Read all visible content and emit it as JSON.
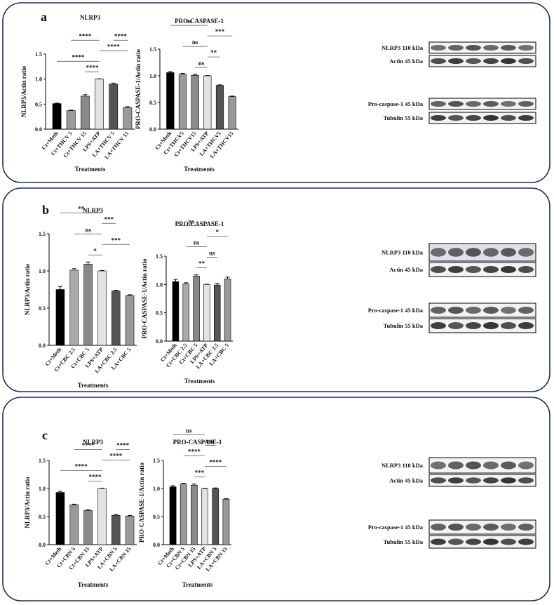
{
  "panels": [
    {
      "label": "a",
      "blots": [
        "NLRP3  110 kDa",
        "Actin 45 kDa",
        "Pro-caspase-1  45 kDa",
        "Tubulin  55 kDa"
      ]
    },
    {
      "label": "b",
      "blots": [
        "NLRP3  110 kDa",
        "Actin 45 kDa",
        "Pro-caspase-1  45 kDa",
        "Tubulin  55 kDa"
      ]
    },
    {
      "label": "c",
      "blots": [
        "NLRP3  110 kDa",
        "Actin 45 kDa",
        "Pro-caspase-1  45 kDa",
        "Tubulin  55 kDa"
      ]
    }
  ],
  "chart_data": [
    {
      "type": "bar",
      "title": "NLRP3",
      "ylabel": "NLRP3/Actin ratio",
      "xlabel": "Treatments",
      "categories": [
        "Ct+Meth",
        "Ct+THCV 5",
        "Ct+THCV 15",
        "LPS+ATP",
        "LA+THCV 5",
        "LA+THCV 15"
      ],
      "values": [
        0.51,
        0.37,
        0.66,
        1.0,
        0.9,
        0.43
      ],
      "errors": [
        0.01,
        0.01,
        0.03,
        0.005,
        0.02,
        0.02
      ],
      "colors": [
        "#000000",
        "#9a9a9a",
        "#8a8a8a",
        "#e2e2e2",
        "#555555",
        "#9a9a9a"
      ],
      "ylim": [
        0,
        1.5
      ],
      "yticks": [
        {
          "value": 0,
          "label": "0.0"
        },
        0.5,
        {
          "value": 1,
          "label": "1.0"
        },
        1.5
      ],
      "annotations": [
        {
          "text": "****",
          "from": "LPS+ATP",
          "to": "Ct+THCV 15"
        },
        {
          "text": "****",
          "from": "Ct+Meth",
          "to": "LPS+ATP"
        },
        {
          "text": "****",
          "from": "LPS+ATP",
          "to": "LA+THCV 15"
        },
        {
          "text": "****",
          "from": "Ct+THCV 5",
          "to": "LPS+ATP"
        },
        {
          "text": "****",
          "from": "LA+THCV 5",
          "to": "LA+THCV 15"
        }
      ]
    },
    {
      "type": "bar",
      "title": "PRO-CASPASE-1",
      "ylabel": "PRO-CASPASE-1/Actin ratio",
      "xlabel": "Treatments",
      "categories": [
        "Ct+Meth",
        "Ct+THCV5",
        "Ct+THCV15",
        "LPS+ATP",
        "LA+THCV5",
        "LA+THCV15"
      ],
      "values": [
        1.06,
        1.03,
        1.01,
        1.0,
        0.82,
        0.61
      ],
      "errors": [
        0.02,
        0.015,
        0.015,
        0.005,
        0.01,
        0.01
      ],
      "colors": [
        "#000000",
        "#9a9a9a",
        "#8a8a8a",
        "#e2e2e2",
        "#555555",
        "#9a9a9a"
      ],
      "ylim": [
        0,
        1.5
      ],
      "yticks": [
        {
          "value": 0,
          "label": "0.0"
        },
        0.5,
        {
          "value": 1,
          "label": "1.0"
        },
        1.5
      ],
      "annotations": [
        {
          "text": "ns",
          "from": "Ct+THCV15",
          "to": "LPS+ATP"
        },
        {
          "text": "**",
          "from": "LPS+ATP",
          "to": "LA+THCV5"
        },
        {
          "text": "ns",
          "from": "Ct+THCV5",
          "to": "LPS+ATP"
        },
        {
          "text": "***",
          "from": "LPS+ATP",
          "to": "LA+THCV15"
        },
        {
          "text": "ns",
          "from": "Ct+Meth",
          "to": "LPS+ATP"
        }
      ]
    },
    {
      "type": "bar",
      "title": "NLRP3",
      "ylabel": "NLRP3/Actin ratio",
      "xlabel": "Treatments",
      "categories": [
        "Ct+Meth",
        "Ct+CBC 2.5",
        "Ct+CBC 5",
        "LPS+ATP",
        "LA+CBC 2.5",
        "LA+CBC 5"
      ],
      "values": [
        0.75,
        1.01,
        1.09,
        1.0,
        0.73,
        0.67
      ],
      "errors": [
        0.04,
        0.02,
        0.03,
        0.005,
        0.01,
        0.01
      ],
      "colors": [
        "#000000",
        "#aaaaaa",
        "#888888",
        "#e2e2e2",
        "#555555",
        "#999999"
      ],
      "ylim": [
        0,
        1.5
      ],
      "yticks": [
        {
          "value": 0,
          "label": "0.0"
        },
        0.5,
        {
          "value": 1,
          "label": "1.0"
        },
        1.5
      ],
      "annotations": [
        {
          "text": "*",
          "from": "Ct+CBC 5",
          "to": "LPS+ATP"
        },
        {
          "text": "***",
          "from": "LPS+ATP",
          "to": "LA+CBC 5"
        },
        {
          "text": "ns",
          "from": "Ct+CBC 2.5",
          "to": "LPS+ATP"
        },
        {
          "text": "***",
          "from": "LPS+ATP",
          "to": "LA+CBC 2.5"
        },
        {
          "text": "**",
          "from": "Ct+Meth",
          "to": "LPS+ATP"
        }
      ]
    },
    {
      "type": "bar",
      "title": "PRO-CASPASE-1",
      "ylabel": "PRO-CASPASE-1/Actin ratio",
      "xlabel": "Treatments",
      "categories": [
        "Ct+Meth",
        "Ct+CBC 2.5",
        "Ct+CBC 5",
        "LPS+ATP",
        "LA+CBC 2.5",
        "LA+CBC 5"
      ],
      "values": [
        1.05,
        1.01,
        1.15,
        1.0,
        0.99,
        1.1
      ],
      "errors": [
        0.04,
        0.02,
        0.02,
        0.005,
        0.03,
        0.03
      ],
      "colors": [
        "#000000",
        "#aaaaaa",
        "#888888",
        "#e2e2e2",
        "#555555",
        "#999999"
      ],
      "ylim": [
        0,
        1.5
      ],
      "yticks": [
        {
          "value": 0,
          "label": "0.0"
        },
        0.5,
        {
          "value": 1,
          "label": "1.0"
        },
        1.5
      ],
      "annotations": [
        {
          "text": "**",
          "from": "Ct+CBC 5",
          "to": "LPS+ATP"
        },
        {
          "text": "ns",
          "from": "LPS+ATP",
          "to": "LA+CBC 2.5"
        },
        {
          "text": "ns",
          "from": "Ct+CBC 2.5",
          "to": "LPS+ATP"
        },
        {
          "text": "*",
          "from": "LPS+ATP",
          "to": "LA+CBC 5"
        },
        {
          "text": "ns",
          "from": "Ct+Meth",
          "to": "LPS+ATP"
        }
      ]
    },
    {
      "type": "bar",
      "title": "NLRP3",
      "ylabel": "NLRP3/Actin ratio",
      "xlabel": "Treatments",
      "categories": [
        "Ct+Meth",
        "Ct+CBN 5",
        "Ct+CBN 15",
        "LPS+ATP",
        "LA+CBN 5",
        "LA+CBN 15"
      ],
      "values": [
        0.93,
        0.71,
        0.61,
        1.0,
        0.52,
        0.51
      ],
      "errors": [
        0.02,
        0.01,
        0.01,
        0.005,
        0.02,
        0.01
      ],
      "colors": [
        "#000000",
        "#9a9a9a",
        "#8a8a8a",
        "#e2e2e2",
        "#555555",
        "#9a9a9a"
      ],
      "ylim": [
        0,
        1.5
      ],
      "yticks": [
        {
          "value": 0,
          "label": "0.0"
        },
        0.5,
        {
          "value": 1,
          "label": "1.0"
        },
        1.5
      ],
      "annotations": [
        {
          "text": "****",
          "from": "Ct+CBN 15",
          "to": "LPS+ATP"
        },
        {
          "text": "****",
          "from": "Ct+Meth",
          "to": "LPS+ATP"
        },
        {
          "text": "****",
          "from": "LPS+ATP",
          "to": "LA+CBN 15"
        },
        {
          "text": "****",
          "from": "Ct+CBN 5",
          "to": "LPS+ATP"
        },
        {
          "text": "****",
          "from": "LA+CBN 5",
          "to": "LA+CBN 15"
        }
      ]
    },
    {
      "type": "bar",
      "title": "PRO-CASPASE-1",
      "ylabel": "PRO-CASPASE-1/Actin ratio",
      "xlabel": "Treatments",
      "categories": [
        "Ct+Meth",
        "Ct+CBN 5",
        "Ct+CBN 15",
        "LPS+ATP",
        "LA+CBN 5",
        "LA+CBN 15"
      ],
      "values": [
        1.03,
        1.08,
        1.06,
        1.0,
        1.0,
        0.81
      ],
      "errors": [
        0.02,
        0.01,
        0.02,
        0.005,
        0.01,
        0.01
      ],
      "colors": [
        "#000000",
        "#9a9a9a",
        "#8a8a8a",
        "#e2e2e2",
        "#555555",
        "#9a9a9a"
      ],
      "ylim": [
        0,
        1.5
      ],
      "yticks": [
        {
          "value": 0,
          "label": "0.0"
        },
        0.5,
        {
          "value": 1,
          "label": "1.0"
        },
        1.5
      ],
      "annotations": [
        {
          "text": "***",
          "from": "Ct+CBN 15",
          "to": "LPS+ATP"
        },
        {
          "text": "****",
          "from": "LPS+ATP",
          "to": "LA+CBN 15"
        },
        {
          "text": "****",
          "from": "Ct+CBN 5",
          "to": "LPS+ATP"
        },
        {
          "text": "ns",
          "from": "LPS+ATP",
          "to": "LA+CBN 5"
        },
        {
          "text": "ns",
          "from": "Ct+Meth",
          "to": "LPS+ATP"
        }
      ]
    }
  ]
}
